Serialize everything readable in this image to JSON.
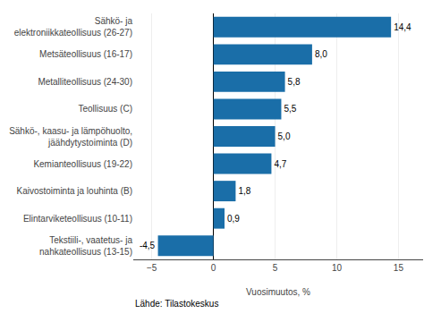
{
  "chart_data": {
    "type": "bar",
    "orientation": "horizontal",
    "categories": [
      "Tekstiili-, vaatetus- ja\nnahkateollisuus (13-15)",
      "Elintarviketeollisuus (10-11)",
      "Kaivostoiminta ja louhinta (B)",
      "Kemianteollisuus (19-22)",
      "Sähkö-, kaasu- ja lämpöhuolto,\njäähdytystoiminta (D)",
      "Teollisuus (C)",
      "Metalliteollisuus (24-30)",
      "Metsäteollisuus (16-17)",
      "Sähkö- ja\nelektroniikkateollisuus (26-27)"
    ],
    "values": [
      -4.5,
      0.9,
      1.8,
      4.7,
      5.0,
      5.5,
      5.8,
      8.0,
      14.4
    ],
    "value_labels": [
      "-4,5",
      "0,9",
      "1,8",
      "4,7",
      "5,0",
      "5,5",
      "5,8",
      "8,0",
      "14,4"
    ],
    "data_labels": true,
    "color": "#1a6ea8",
    "xlabel": "Vuosimuutos, %",
    "xlim": [
      -6.5,
      17.0
    ],
    "xticks": [
      -5,
      0,
      5,
      10,
      15
    ],
    "grid": true,
    "annotations": [
      "Lähde: Tilastokeskus"
    ]
  }
}
